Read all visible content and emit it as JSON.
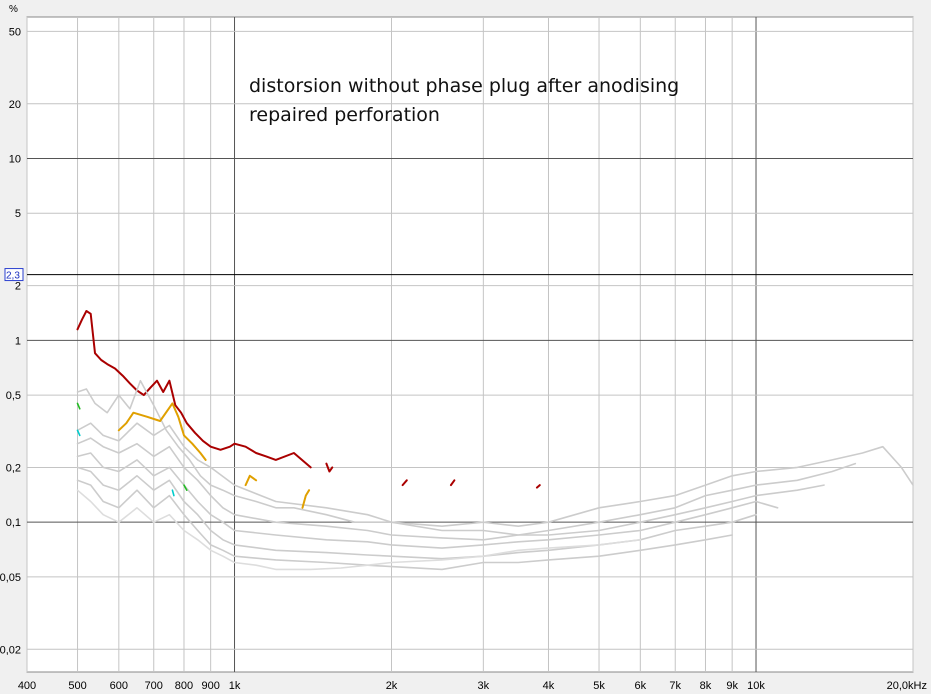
{
  "chart_data": {
    "type": "line",
    "title": "",
    "annotation": [
      "distorsion without phase plug after anodising",
      "repaired perforation"
    ],
    "y_unit": "%",
    "x_scale": "log",
    "y_scale": "log",
    "xlim": [
      400,
      20000
    ],
    "ylim": [
      0.015,
      60
    ],
    "grid": true,
    "x_ticks": [
      {
        "v": 400,
        "label": "400"
      },
      {
        "v": 500,
        "label": "500"
      },
      {
        "v": 600,
        "label": "600"
      },
      {
        "v": 700,
        "label": "700"
      },
      {
        "v": 800,
        "label": "800"
      },
      {
        "v": 900,
        "label": "900"
      },
      {
        "v": 1000,
        "label": "1k"
      },
      {
        "v": 2000,
        "label": "2k"
      },
      {
        "v": 3000,
        "label": "3k"
      },
      {
        "v": 4000,
        "label": "4k"
      },
      {
        "v": 5000,
        "label": "5k"
      },
      {
        "v": 6000,
        "label": "6k"
      },
      {
        "v": 7000,
        "label": "7k"
      },
      {
        "v": 8000,
        "label": "8k"
      },
      {
        "v": 9000,
        "label": "9k"
      },
      {
        "v": 10000,
        "label": "10k"
      },
      {
        "v": 20000,
        "label": "20,0kHz"
      }
    ],
    "y_ticks": [
      {
        "v": 50,
        "label": "50"
      },
      {
        "v": 20,
        "label": "20"
      },
      {
        "v": 10,
        "label": "10"
      },
      {
        "v": 5,
        "label": "5"
      },
      {
        "v": 2,
        "label": "2"
      },
      {
        "v": 1,
        "label": "1"
      },
      {
        "v": 0.5,
        "label": "0,5"
      },
      {
        "v": 0.2,
        "label": "0,2"
      },
      {
        "v": 0.1,
        "label": "0,1"
      },
      {
        "v": 0.05,
        "label": "0,05"
      },
      {
        "v": 0.02,
        "label": "0,02"
      }
    ],
    "cursor": {
      "value": 2.3,
      "label": "2,3"
    },
    "series": [
      {
        "color": "#aa0000",
        "points": [
          [
            500,
            1.15
          ],
          [
            510,
            1.3
          ],
          [
            520,
            1.45
          ],
          [
            530,
            1.4
          ],
          [
            540,
            0.85
          ],
          [
            555,
            0.78
          ],
          [
            570,
            0.74
          ],
          [
            590,
            0.7
          ],
          [
            610,
            0.64
          ],
          [
            630,
            0.58
          ],
          [
            650,
            0.53
          ],
          [
            670,
            0.5
          ],
          [
            690,
            0.55
          ],
          [
            710,
            0.6
          ],
          [
            730,
            0.52
          ],
          [
            750,
            0.6
          ],
          [
            770,
            0.44
          ],
          [
            790,
            0.4
          ],
          [
            810,
            0.35
          ],
          [
            840,
            0.31
          ],
          [
            870,
            0.28
          ],
          [
            900,
            0.26
          ],
          [
            940,
            0.25
          ],
          [
            980,
            0.26
          ],
          [
            1000,
            0.27
          ],
          [
            1050,
            0.26
          ],
          [
            1100,
            0.24
          ],
          [
            1150,
            0.23
          ],
          [
            1200,
            0.22
          ],
          [
            1300,
            0.24
          ],
          [
            1400,
            0.2
          ]
        ]
      },
      {
        "color": "#cccccc",
        "points": [
          [
            500,
            0.52
          ],
          [
            520,
            0.54
          ],
          [
            540,
            0.45
          ],
          [
            570,
            0.4
          ],
          [
            600,
            0.5
          ],
          [
            630,
            0.42
          ],
          [
            660,
            0.6
          ],
          [
            700,
            0.44
          ],
          [
            740,
            0.32
          ],
          [
            780,
            0.26
          ],
          [
            820,
            0.22
          ],
          [
            860,
            0.18
          ],
          [
            900,
            0.16
          ],
          [
            950,
            0.15
          ],
          [
            1000,
            0.14
          ],
          [
            1100,
            0.13
          ],
          [
            1200,
            0.12
          ],
          [
            1300,
            0.12
          ],
          [
            1500,
            0.11
          ],
          [
            1700,
            0.1
          ],
          [
            2000,
            0.1
          ],
          [
            2500,
            0.095
          ],
          [
            3000,
            0.1
          ],
          [
            3500,
            0.095
          ],
          [
            4000,
            0.1
          ],
          [
            5000,
            0.12
          ],
          [
            6000,
            0.13
          ],
          [
            7000,
            0.14
          ],
          [
            8000,
            0.16
          ],
          [
            9000,
            0.18
          ],
          [
            10000,
            0.19
          ],
          [
            12000,
            0.2
          ],
          [
            14000,
            0.22
          ],
          [
            16000,
            0.24
          ],
          [
            17500,
            0.26
          ],
          [
            19000,
            0.2
          ],
          [
            20000,
            0.16
          ]
        ]
      },
      {
        "color": "#cccccc",
        "points": [
          [
            500,
            0.32
          ],
          [
            530,
            0.35
          ],
          [
            560,
            0.3
          ],
          [
            600,
            0.28
          ],
          [
            650,
            0.35
          ],
          [
            700,
            0.3
          ],
          [
            750,
            0.34
          ],
          [
            800,
            0.26
          ],
          [
            850,
            0.22
          ],
          [
            900,
            0.2
          ],
          [
            1000,
            0.16
          ],
          [
            1200,
            0.13
          ],
          [
            1500,
            0.12
          ],
          [
            1800,
            0.11
          ],
          [
            2000,
            0.1
          ],
          [
            2500,
            0.09
          ],
          [
            3000,
            0.09
          ],
          [
            3500,
            0.085
          ],
          [
            4000,
            0.09
          ],
          [
            5000,
            0.1
          ],
          [
            6000,
            0.11
          ],
          [
            7000,
            0.12
          ],
          [
            8000,
            0.14
          ],
          [
            9000,
            0.15
          ],
          [
            10000,
            0.16
          ],
          [
            12000,
            0.17
          ],
          [
            14000,
            0.19
          ],
          [
            15500,
            0.21
          ]
        ]
      },
      {
        "color": "#cccccc",
        "points": [
          [
            500,
            0.27
          ],
          [
            530,
            0.29
          ],
          [
            560,
            0.26
          ],
          [
            600,
            0.24
          ],
          [
            650,
            0.27
          ],
          [
            700,
            0.23
          ],
          [
            750,
            0.26
          ],
          [
            800,
            0.2
          ],
          [
            850,
            0.17
          ],
          [
            900,
            0.14
          ],
          [
            950,
            0.12
          ],
          [
            1000,
            0.11
          ],
          [
            1200,
            0.1
          ],
          [
            1500,
            0.095
          ],
          [
            1800,
            0.09
          ],
          [
            2000,
            0.085
          ],
          [
            2500,
            0.082
          ],
          [
            3000,
            0.08
          ],
          [
            3500,
            0.085
          ],
          [
            4000,
            0.085
          ],
          [
            5000,
            0.09
          ],
          [
            6000,
            0.1
          ],
          [
            7000,
            0.11
          ],
          [
            8000,
            0.12
          ],
          [
            9000,
            0.13
          ],
          [
            10000,
            0.14
          ],
          [
            12000,
            0.15
          ],
          [
            13500,
            0.16
          ]
        ]
      },
      {
        "color": "#cccccc",
        "points": [
          [
            500,
            0.23
          ],
          [
            530,
            0.24
          ],
          [
            560,
            0.2
          ],
          [
            600,
            0.19
          ],
          [
            650,
            0.22
          ],
          [
            700,
            0.18
          ],
          [
            750,
            0.2
          ],
          [
            800,
            0.16
          ],
          [
            850,
            0.13
          ],
          [
            900,
            0.11
          ],
          [
            950,
            0.1
          ],
          [
            1000,
            0.09
          ],
          [
            1200,
            0.085
          ],
          [
            1500,
            0.08
          ],
          [
            1800,
            0.078
          ],
          [
            2000,
            0.075
          ],
          [
            2500,
            0.072
          ],
          [
            3000,
            0.075
          ],
          [
            3500,
            0.078
          ],
          [
            4000,
            0.08
          ],
          [
            5000,
            0.085
          ],
          [
            6000,
            0.09
          ],
          [
            7000,
            0.1
          ],
          [
            8000,
            0.11
          ],
          [
            9000,
            0.12
          ],
          [
            10000,
            0.13
          ],
          [
            11000,
            0.12
          ]
        ]
      },
      {
        "color": "#cccccc",
        "points": [
          [
            500,
            0.2
          ],
          [
            530,
            0.19
          ],
          [
            560,
            0.16
          ],
          [
            600,
            0.15
          ],
          [
            650,
            0.18
          ],
          [
            700,
            0.15
          ],
          [
            750,
            0.17
          ],
          [
            800,
            0.13
          ],
          [
            850,
            0.11
          ],
          [
            900,
            0.09
          ],
          [
            950,
            0.08
          ],
          [
            1000,
            0.075
          ],
          [
            1200,
            0.07
          ],
          [
            1500,
            0.068
          ],
          [
            1800,
            0.066
          ],
          [
            2000,
            0.065
          ],
          [
            2500,
            0.063
          ],
          [
            3000,
            0.065
          ],
          [
            3500,
            0.068
          ],
          [
            4000,
            0.07
          ],
          [
            5000,
            0.075
          ],
          [
            6000,
            0.08
          ],
          [
            7000,
            0.09
          ],
          [
            8000,
            0.095
          ],
          [
            9000,
            0.1
          ],
          [
            10000,
            0.11
          ]
        ]
      },
      {
        "color": "#cccccc",
        "points": [
          [
            500,
            0.17
          ],
          [
            530,
            0.16
          ],
          [
            560,
            0.13
          ],
          [
            600,
            0.12
          ],
          [
            650,
            0.15
          ],
          [
            700,
            0.12
          ],
          [
            750,
            0.14
          ],
          [
            800,
            0.11
          ],
          [
            850,
            0.09
          ],
          [
            900,
            0.075
          ],
          [
            950,
            0.07
          ],
          [
            1000,
            0.065
          ],
          [
            1200,
            0.062
          ],
          [
            1500,
            0.06
          ],
          [
            1800,
            0.058
          ],
          [
            2000,
            0.057
          ],
          [
            2500,
            0.055
          ],
          [
            3000,
            0.06
          ],
          [
            3500,
            0.06
          ],
          [
            4000,
            0.062
          ],
          [
            5000,
            0.065
          ],
          [
            6000,
            0.07
          ],
          [
            7000,
            0.075
          ],
          [
            8000,
            0.08
          ],
          [
            9000,
            0.085
          ]
        ]
      },
      {
        "color": "#dddddd",
        "points": [
          [
            500,
            0.15
          ],
          [
            530,
            0.13
          ],
          [
            560,
            0.11
          ],
          [
            600,
            0.1
          ],
          [
            650,
            0.12
          ],
          [
            700,
            0.1
          ],
          [
            750,
            0.11
          ],
          [
            800,
            0.09
          ],
          [
            850,
            0.08
          ],
          [
            900,
            0.07
          ],
          [
            950,
            0.065
          ],
          [
            1000,
            0.06
          ],
          [
            1100,
            0.058
          ],
          [
            1200,
            0.055
          ],
          [
            1400,
            0.055
          ],
          [
            1600,
            0.056
          ],
          [
            1800,
            0.058
          ],
          [
            2000,
            0.06
          ],
          [
            2500,
            0.062
          ],
          [
            3000,
            0.065
          ],
          [
            3500,
            0.07
          ],
          [
            4000,
            0.072
          ],
          [
            5000,
            0.075
          ],
          [
            6000,
            0.08
          ]
        ]
      },
      {
        "color": "#e0a000",
        "points": [
          [
            600,
            0.32
          ],
          [
            620,
            0.35
          ],
          [
            640,
            0.4
          ],
          [
            680,
            0.38
          ],
          [
            720,
            0.36
          ],
          [
            760,
            0.45
          ],
          [
            780,
            0.38
          ],
          [
            800,
            0.3
          ],
          [
            830,
            0.27
          ],
          [
            860,
            0.24
          ],
          [
            880,
            0.22
          ]
        ]
      },
      {
        "color": "#e0a000",
        "points": [
          [
            1050,
            0.16
          ],
          [
            1070,
            0.18
          ],
          [
            1100,
            0.17
          ]
        ]
      },
      {
        "color": "#e0a000",
        "points": [
          [
            1350,
            0.12
          ],
          [
            1370,
            0.14
          ],
          [
            1390,
            0.15
          ]
        ]
      },
      {
        "color": "#aa0000",
        "points": [
          [
            1500,
            0.21
          ],
          [
            1520,
            0.19
          ],
          [
            1540,
            0.2
          ]
        ]
      },
      {
        "color": "#aa0000",
        "points": [
          [
            2100,
            0.16
          ],
          [
            2140,
            0.17
          ]
        ]
      },
      {
        "color": "#aa0000",
        "points": [
          [
            2600,
            0.16
          ],
          [
            2640,
            0.17
          ]
        ]
      },
      {
        "color": "#aa0000",
        "points": [
          [
            3800,
            0.155
          ],
          [
            3850,
            0.16
          ]
        ]
      },
      {
        "color": "#22bb22",
        "points": [
          [
            500,
            0.45
          ],
          [
            505,
            0.42
          ]
        ]
      },
      {
        "color": "#22bb22",
        "points": [
          [
            800,
            0.16
          ],
          [
            810,
            0.15
          ]
        ]
      },
      {
        "color": "#00cccc",
        "points": [
          [
            500,
            0.32
          ],
          [
            505,
            0.3
          ]
        ]
      },
      {
        "color": "#00cccc",
        "points": [
          [
            760,
            0.15
          ],
          [
            765,
            0.14
          ]
        ]
      }
    ]
  }
}
